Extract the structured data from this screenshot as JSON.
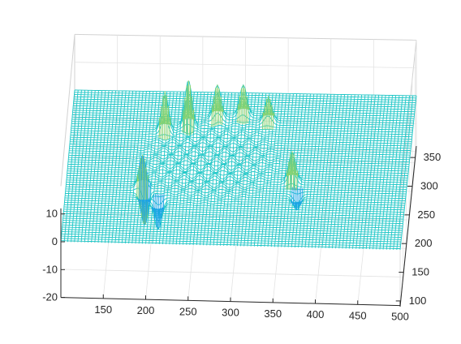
{
  "chart_data": {
    "type": "surface-mesh",
    "title": "",
    "xlabel": "",
    "ylabel": "",
    "zlabel": "",
    "x_ticks": [
      150,
      200,
      250,
      300,
      350,
      400,
      450,
      500
    ],
    "y_ticks": [
      100,
      150,
      200,
      250,
      300,
      350
    ],
    "z_ticks": [
      -20,
      -10,
      0,
      10
    ],
    "x_tick_labels": [
      "150",
      "200",
      "250",
      "300",
      "350",
      "400",
      "450",
      "500"
    ],
    "y_tick_labels": [
      "100",
      "150",
      "200",
      "250",
      "300",
      "350"
    ],
    "z_tick_labels": [
      "-20",
      "-10",
      "0",
      "10"
    ],
    "xlim": [
      100,
      500
    ],
    "ylim": [
      90,
      370
    ],
    "zlim": [
      -20,
      20
    ],
    "grid": true,
    "colormap": [
      "#1f3fd6",
      "#1aa0e8",
      "#1fc7c7",
      "#8fd36a",
      "#f0e020"
    ],
    "base_color": "#1fc7c7",
    "peaks": [
      {
        "x": 210,
        "y": 300,
        "z": 14
      },
      {
        "x": 237,
        "y": 310,
        "z": 16
      },
      {
        "x": 270,
        "y": 325,
        "z": 12
      },
      {
        "x": 300,
        "y": 330,
        "z": 11
      },
      {
        "x": 330,
        "y": 320,
        "z": 9
      },
      {
        "x": 190,
        "y": 200,
        "z": 12
      },
      {
        "x": 193,
        "y": 190,
        "z": -12
      },
      {
        "x": 210,
        "y": 175,
        "z": -10
      },
      {
        "x": 365,
        "y": 215,
        "z": 11
      },
      {
        "x": 372,
        "y": 190,
        "z": -5
      }
    ]
  }
}
